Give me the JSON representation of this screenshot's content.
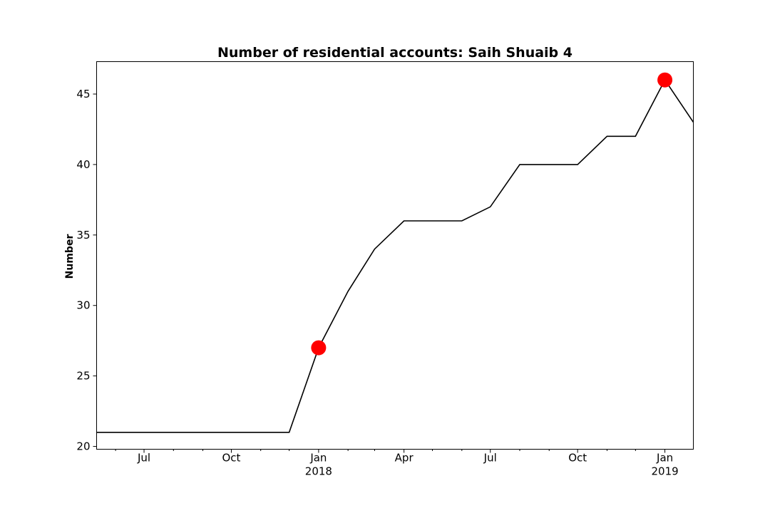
{
  "chart_data": {
    "type": "line",
    "title": "Number of residential accounts: Saih Shuaib 4",
    "xlabel": "",
    "ylabel": "Number",
    "xlim": [
      "2017-05-12",
      "2019-01-31"
    ],
    "ylim": [
      19.8,
      47.3
    ],
    "grid": false,
    "series": [
      {
        "color": "#000000",
        "points": [
          {
            "x": "2017-05-12",
            "y": 21
          },
          {
            "x": "2017-06-01",
            "y": 21
          },
          {
            "x": "2017-07-01",
            "y": 21
          },
          {
            "x": "2017-08-01",
            "y": 21
          },
          {
            "x": "2017-09-01",
            "y": 21
          },
          {
            "x": "2017-10-01",
            "y": 21
          },
          {
            "x": "2017-11-01",
            "y": 21
          },
          {
            "x": "2017-12-01",
            "y": 21
          },
          {
            "x": "2018-01-01",
            "y": 27
          },
          {
            "x": "2018-02-01",
            "y": 31
          },
          {
            "x": "2018-03-01",
            "y": 34
          },
          {
            "x": "2018-04-01",
            "y": 36
          },
          {
            "x": "2018-05-01",
            "y": 36
          },
          {
            "x": "2018-06-01",
            "y": 36
          },
          {
            "x": "2018-07-01",
            "y": 37
          },
          {
            "x": "2018-08-01",
            "y": 40
          },
          {
            "x": "2018-09-01",
            "y": 40
          },
          {
            "x": "2018-10-01",
            "y": 40
          },
          {
            "x": "2018-11-01",
            "y": 42
          },
          {
            "x": "2018-12-01",
            "y": 42
          },
          {
            "x": "2019-01-01",
            "y": 46
          },
          {
            "x": "2019-01-31",
            "y": 43
          }
        ]
      }
    ],
    "markers": {
      "color": "#ff0000",
      "points": [
        {
          "x": "2018-01-01",
          "y": 27
        },
        {
          "x": "2019-01-01",
          "y": 46
        }
      ]
    },
    "y_ticks": [
      20,
      25,
      30,
      35,
      40,
      45
    ],
    "x_ticks": [
      {
        "date": "2017-07-01",
        "label": "Jul",
        "sublabel": ""
      },
      {
        "date": "2017-10-01",
        "label": "Oct",
        "sublabel": ""
      },
      {
        "date": "2018-01-01",
        "label": "Jan",
        "sublabel": "2018"
      },
      {
        "date": "2018-04-01",
        "label": "Apr",
        "sublabel": ""
      },
      {
        "date": "2018-07-01",
        "label": "Jul",
        "sublabel": ""
      },
      {
        "date": "2018-10-01",
        "label": "Oct",
        "sublabel": ""
      },
      {
        "date": "2019-01-01",
        "label": "Jan",
        "sublabel": "2019"
      }
    ],
    "x_minor_ticks": [
      "2017-06-01",
      "2017-08-01",
      "2017-09-01",
      "2017-11-01",
      "2017-12-01",
      "2018-02-01",
      "2018-03-01",
      "2018-05-01",
      "2018-06-01",
      "2018-08-01",
      "2018-09-01",
      "2018-11-01",
      "2018-12-01"
    ]
  }
}
